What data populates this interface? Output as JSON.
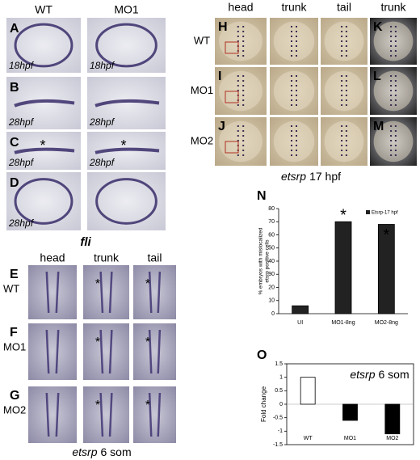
{
  "left_top": {
    "columns": [
      "WT",
      "MO1"
    ],
    "rows": [
      {
        "label": "A",
        "stages": [
          "18hpf",
          "18hpf"
        ]
      },
      {
        "label": "B",
        "stages": [
          "28hpf",
          "28hpf"
        ]
      },
      {
        "label": "C",
        "stages": [
          "28hpf",
          "28hpf"
        ],
        "markers": [
          "*",
          "*"
        ]
      },
      {
        "label": "D",
        "stages": [
          "28hpf"
        ]
      }
    ],
    "gene": "fli"
  },
  "left_bottom": {
    "columns": [
      "head",
      "trunk",
      "tail"
    ],
    "rows": [
      {
        "label": "E",
        "condition": "WT"
      },
      {
        "label": "F",
        "condition": "MO1"
      },
      {
        "label": "G",
        "condition": "MO2"
      }
    ],
    "marker": "*",
    "caption_gene": "etsrp",
    "caption_stage": "6 som"
  },
  "right_top": {
    "columns": [
      "head",
      "trunk",
      "tail",
      "trunk"
    ],
    "rows": [
      {
        "label": "H",
        "condition": "WT",
        "side_label": "K"
      },
      {
        "label": "I",
        "condition": "MO1",
        "side_label": "L"
      },
      {
        "label": "J",
        "condition": "MO2",
        "side_label": "M"
      }
    ],
    "caption_gene": "etsrp",
    "caption_stage": "17 hpf"
  },
  "chart_data": [
    {
      "type": "bar",
      "panel": "N",
      "ylabel": [
        "% embryos with mislocalized",
        "etsrp positive cells"
      ],
      "categories": [
        "UI",
        "MO1-8ng",
        "MO2-8ng"
      ],
      "series": [
        {
          "name": "Etsrp-17 hpf",
          "color": "#222222",
          "values": [
            6,
            70,
            68
          ]
        }
      ],
      "ylim": [
        0,
        80
      ],
      "yticks": [
        0,
        10,
        20,
        30,
        40,
        50,
        60,
        70,
        80
      ],
      "markers": [
        "*",
        "*"
      ],
      "legend": "top-right"
    },
    {
      "type": "bar",
      "panel": "O",
      "title_gene": "etsrp",
      "title_stage": "6 som",
      "ylabel": "Fold change",
      "categories": [
        "WT",
        "MO1",
        "MO2"
      ],
      "values": [
        1,
        -0.6,
        -1.1
      ],
      "colors": [
        "#ffffff",
        "#000000",
        "#000000"
      ],
      "ylim": [
        -1.5,
        1.5
      ],
      "yticks": [
        -1.5,
        -1,
        -0.5,
        0,
        0.5,
        1,
        1.5
      ]
    }
  ]
}
